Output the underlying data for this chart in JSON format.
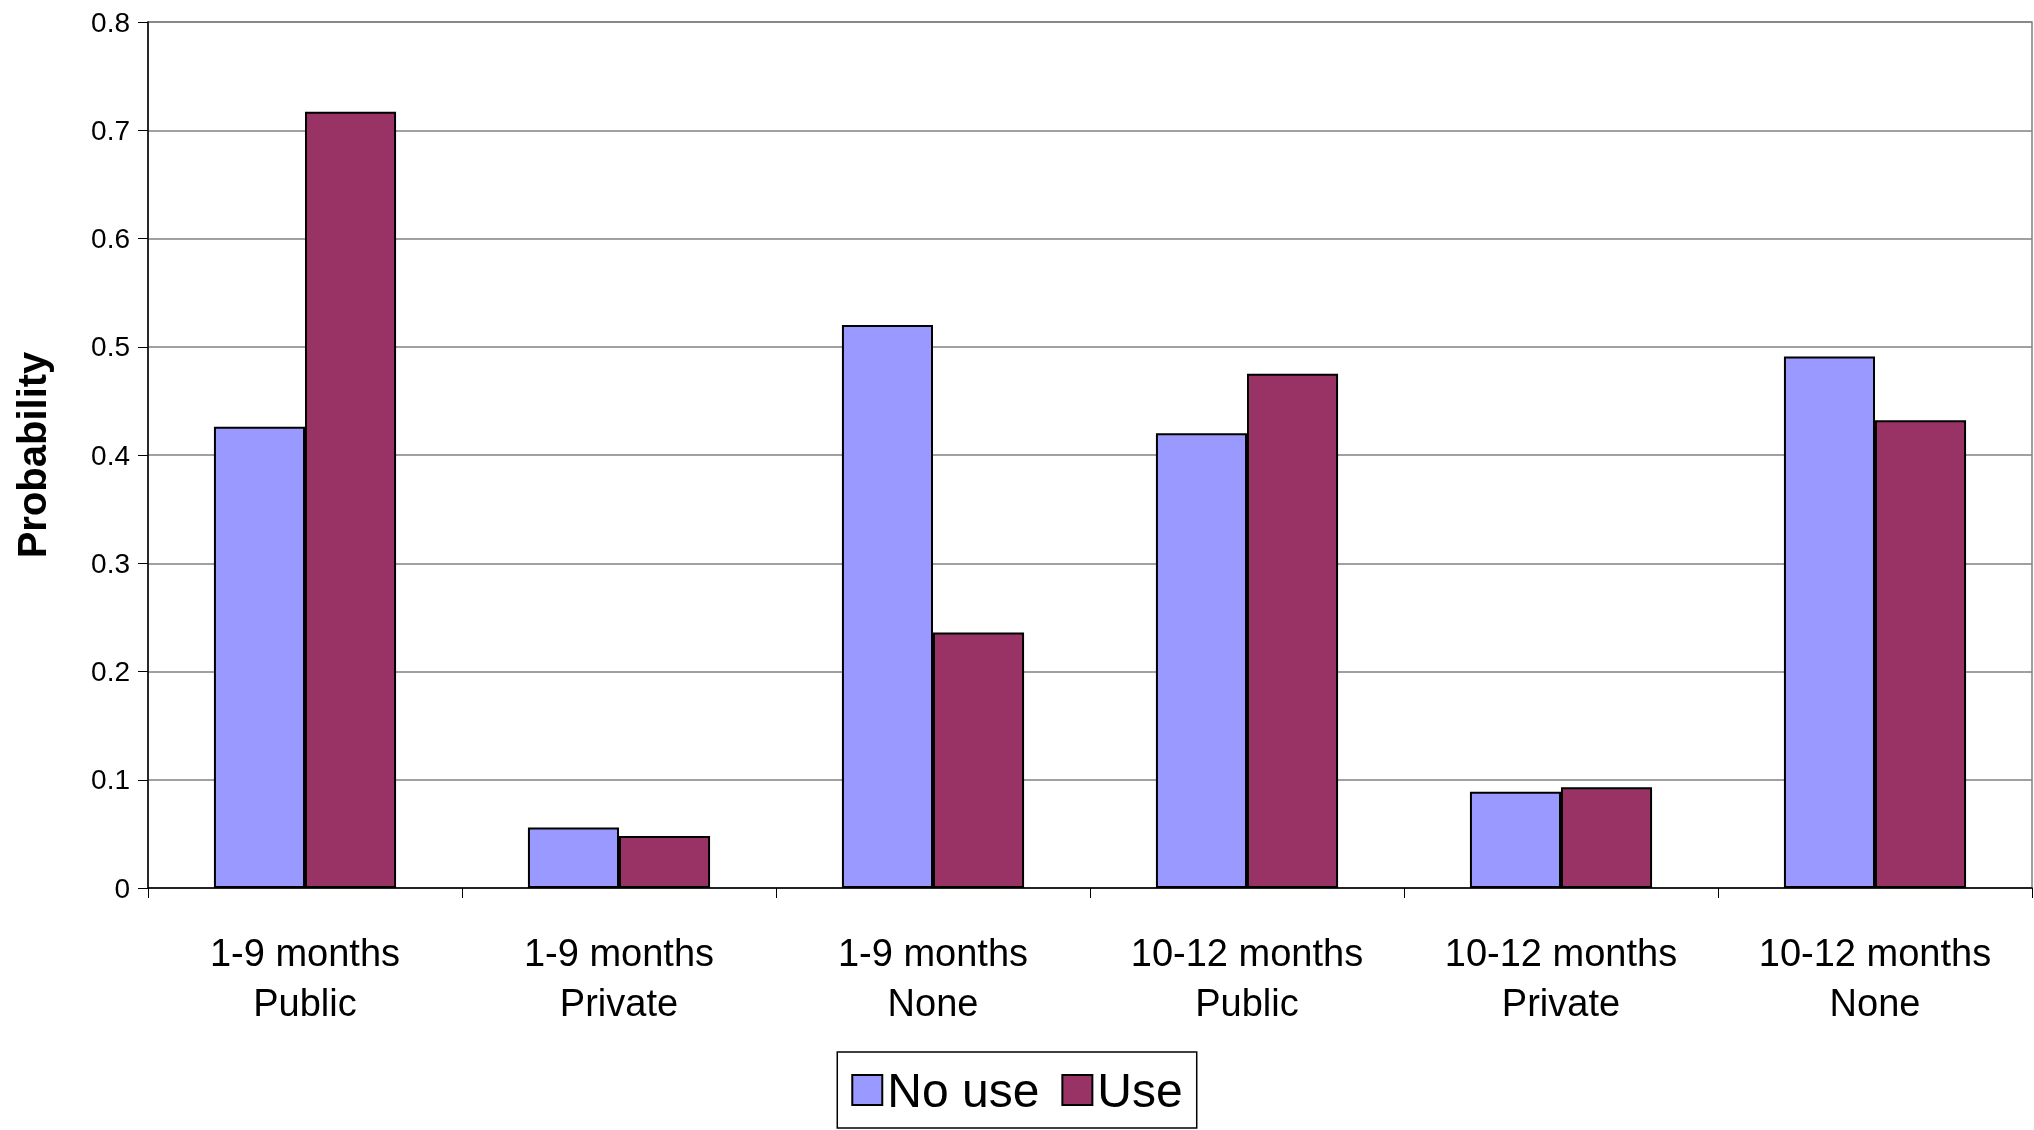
{
  "chart_data": {
    "type": "bar",
    "ylabel": "Probability",
    "categories": [
      "1-9 months\nPublic",
      "1-9 months\nPrivate",
      "1-9 months\nNone",
      "10-12 months\nPublic",
      "10-12 months\nPrivate",
      "10-12 months\nNone"
    ],
    "series": [
      {
        "name": "No use",
        "color": "#9999ff",
        "values": [
          0.426,
          0.056,
          0.52,
          0.42,
          0.089,
          0.491
        ]
      },
      {
        "name": "Use",
        "color": "#993366",
        "values": [
          0.717,
          0.048,
          0.236,
          0.475,
          0.093,
          0.432
        ]
      }
    ],
    "ylim": [
      0,
      0.8
    ],
    "yticks": [
      0,
      0.1,
      0.2,
      0.3,
      0.4,
      0.5,
      0.6,
      0.7,
      0.8
    ],
    "grid": "y",
    "legend": "bottom"
  }
}
